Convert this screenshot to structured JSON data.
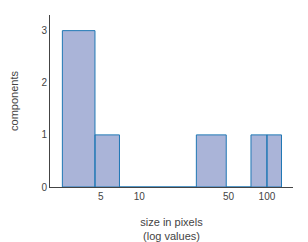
{
  "chart_data": {
    "type": "histogram",
    "xlabel": "size in pixels\n(log values)",
    "ylabel": "components",
    "color": "#aab4d8",
    "log": "x",
    "grid": false,
    "bins": [
      2.5,
      4.5,
      7.0,
      28.0,
      48.0,
      75.0,
      100.0,
      130.0
    ],
    "values": [
      3,
      1,
      0,
      1,
      0,
      1,
      1
    ],
    "xlim": [
      2.0,
      160
    ],
    "xticks": [
      5,
      10,
      50,
      100
    ],
    "ylim": [
      0,
      3.3
    ],
    "yticks": [
      0,
      1,
      2,
      3
    ]
  }
}
